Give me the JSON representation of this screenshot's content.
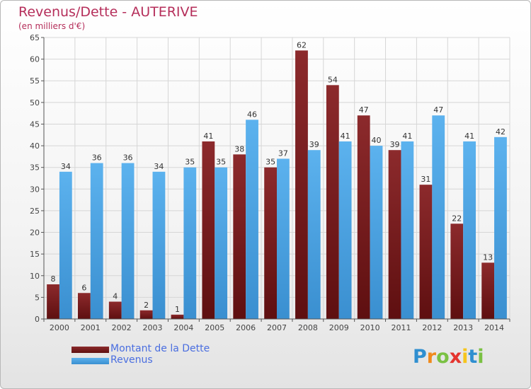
{
  "title": "Revenus/Dette - AUTERIVE",
  "subtitle": "(en milliers d'€)",
  "brand": {
    "letters": [
      "P",
      "r",
      "o",
      "x",
      "i",
      "t",
      "i"
    ],
    "colors": [
      "#2f8fd0",
      "#f08a1c",
      "#7ac143",
      "#e4342e",
      "#f6c51c",
      "#2f8fd0",
      "#7ac143"
    ]
  },
  "chart_data": {
    "type": "bar",
    "categories": [
      "2000",
      "2001",
      "2002",
      "2003",
      "2004",
      "2005",
      "2006",
      "2007",
      "2008",
      "2009",
      "2010",
      "2011",
      "2012",
      "2013",
      "2014"
    ],
    "series": [
      {
        "name": "Montant de la Dette",
        "color": "#7b1a1c",
        "values": [
          8,
          6,
          4,
          2,
          1,
          41,
          38,
          35,
          62,
          54,
          47,
          39,
          31,
          22,
          13
        ],
        "labels": [
          "8",
          "6",
          "4",
          "2",
          "1",
          "41",
          "38",
          "35",
          "62",
          "54",
          "47",
          "39",
          "31",
          "22",
          "13"
        ]
      },
      {
        "name": "Revenus",
        "color": "#4ea6e6",
        "values": [
          34,
          36,
          36,
          34,
          35,
          35,
          46,
          37,
          39,
          41,
          40,
          41,
          47,
          41,
          42
        ],
        "labels": [
          "34",
          "36",
          "36",
          "34",
          "35",
          "35",
          "46",
          "37",
          "39",
          "41",
          "40",
          "41",
          "47",
          "41",
          "42"
        ]
      }
    ],
    "ylim": [
      0,
      65
    ],
    "yticks": [
      0,
      5,
      10,
      15,
      20,
      25,
      30,
      35,
      40,
      45,
      50,
      55,
      60,
      65
    ],
    "ytick_labels": [
      "0",
      "5",
      "10",
      "15",
      "20",
      "25",
      "30",
      "35",
      "40",
      "45",
      "50",
      "55",
      "60",
      "65"
    ],
    "grid": true,
    "legend": "bottom-left"
  }
}
